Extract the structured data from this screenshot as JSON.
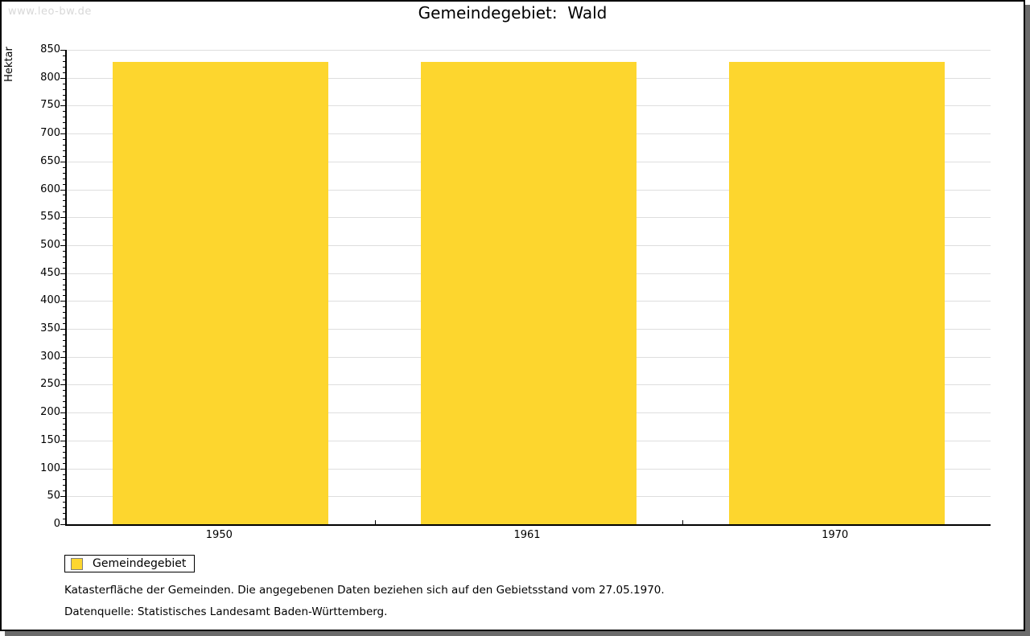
{
  "watermark": "www.leo-bw.de",
  "legend": {
    "label": "Gemeindegebiet"
  },
  "footnotes": [
    "Katasterfläche der Gemeinden. Die angegebenen Daten beziehen sich auf den Gebietsstand vom 27.05.1970.",
    "Datenquelle: Statistisches Landesamt Baden-Württemberg."
  ],
  "colors": {
    "bar": "#fdd62e",
    "bar_swatch_border": "#808080",
    "grid": "#dedede",
    "axis": "#000000",
    "watermark": "#d8d8d8",
    "frame_shadow": "#6b6b6b"
  },
  "chart_data": {
    "type": "bar",
    "title": "Gemeindegebiet:  Wald",
    "categories": [
      "1950",
      "1961",
      "1970"
    ],
    "series": [
      {
        "name": "Gemeindegebiet",
        "values": [
          828,
          828,
          828
        ]
      }
    ],
    "xlabel": "",
    "ylabel": "Hektar",
    "ylim": [
      0,
      850
    ],
    "y_major_interval": 50,
    "y_minor_interval": 10,
    "grid": "horizontal-major",
    "legend_position": "bottom-left",
    "bar_color": "#fdd62e"
  }
}
